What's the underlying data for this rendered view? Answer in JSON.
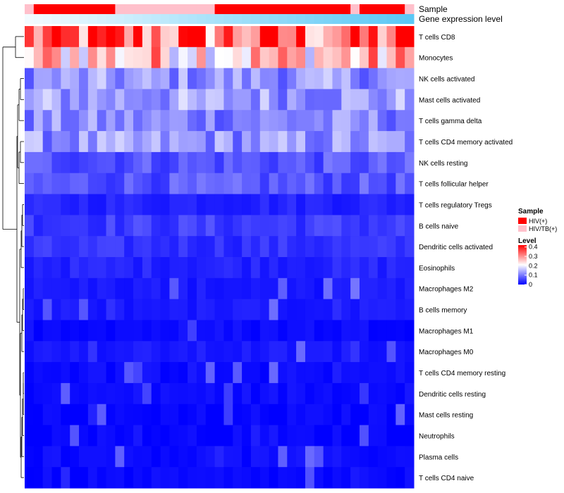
{
  "chart_data": {
    "type": "heatmap",
    "title": "",
    "rows": [
      "T cells CD8",
      "Monocytes",
      "NK cells activated",
      "Mast cells activated",
      "T cells gamma delta",
      "T cells CD4 memory activated",
      "NK cells resting",
      "T cells follicular helper",
      "T cells regulatory  Tregs",
      "B cells naive",
      "Dendritic cells activated",
      "Eosinophils",
      "Macrophages M2",
      "B cells memory",
      "Macrophages M1",
      "Macrophages M0",
      "T cells CD4 memory resting",
      "Dendritic cells resting",
      "Mast cells resting",
      "Neutrophils",
      "Plasma cells",
      "T cells CD4 naive"
    ],
    "row_means": [
      0.33,
      0.26,
      0.12,
      0.13,
      0.11,
      0.12,
      0.07,
      0.07,
      0.03,
      0.05,
      0.04,
      0.03,
      0.02,
      0.02,
      0.01,
      0.02,
      0.01,
      0.01,
      0.005,
      0.005,
      0.01,
      0.005
    ],
    "n_samples": 43,
    "sample_groups": [
      1,
      0,
      0,
      0,
      0,
      0,
      0,
      0,
      0,
      0,
      1,
      1,
      1,
      1,
      1,
      1,
      1,
      1,
      1,
      1,
      1,
      0,
      0,
      0,
      0,
      0,
      0,
      0,
      0,
      0,
      0,
      0,
      0,
      0,
      0,
      0,
      1,
      0,
      0,
      0,
      0,
      0,
      1
    ],
    "annotation_rows": [
      "Sample",
      "Gene expression level"
    ],
    "legend": {
      "sample_title": "Sample",
      "sample_entries": [
        "HIV(+)",
        "HIV/TB(+)"
      ],
      "sample_colors": [
        "#ff0000",
        "#ffc0cb"
      ],
      "level_title": "Level",
      "level_ticks": [
        "0.4",
        "0.3",
        "0.2",
        "0.1",
        "0"
      ],
      "level_tick_values": [
        0.4,
        0.3,
        0.2,
        0.1,
        0
      ],
      "level_range": [
        0,
        0.42
      ],
      "colormap": [
        "#0000ff",
        "#ffffff",
        "#ff0000"
      ]
    },
    "expression_gradient": [
      "#f3fbff",
      "#5bc8f5"
    ]
  }
}
